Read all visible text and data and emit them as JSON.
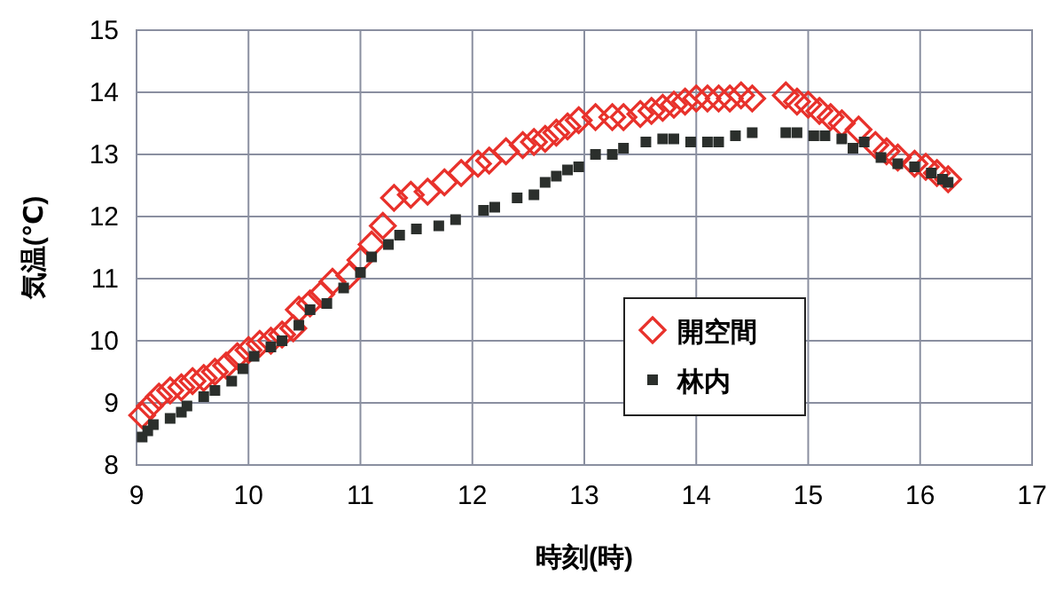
{
  "chart_data": {
    "type": "scatter",
    "xlabel": "時刻(時)",
    "ylabel": "気温(℃)",
    "xlim": [
      9,
      17
    ],
    "xticks": [
      9,
      10,
      11,
      12,
      13,
      14,
      15,
      16,
      17
    ],
    "ylim": [
      8,
      15
    ],
    "yticks": [
      8,
      9,
      10,
      11,
      12,
      13,
      14,
      15
    ],
    "grid": true,
    "legend": "bottom right",
    "series": [
      {
        "name": "開空間",
        "color": "#e8312b",
        "marker": "diamond",
        "x": [
          9.05,
          9.12,
          9.2,
          9.3,
          9.4,
          9.5,
          9.6,
          9.7,
          9.8,
          9.9,
          10.0,
          10.1,
          10.2,
          10.3,
          10.4,
          10.45,
          10.55,
          10.65,
          10.75,
          10.9,
          11.0,
          11.1,
          11.2,
          11.3,
          11.45,
          11.6,
          11.75,
          11.9,
          12.05,
          12.15,
          12.3,
          12.45,
          12.55,
          12.65,
          12.75,
          12.85,
          12.95,
          13.1,
          13.25,
          13.35,
          13.5,
          13.6,
          13.7,
          13.8,
          13.9,
          14.0,
          14.1,
          14.2,
          14.3,
          14.4,
          14.5,
          14.8,
          14.9,
          15.0,
          15.1,
          15.2,
          15.3,
          15.45,
          15.6,
          15.7,
          15.8,
          15.95,
          16.05,
          16.15,
          16.25
        ],
        "values": [
          8.8,
          8.95,
          9.1,
          9.2,
          9.25,
          9.35,
          9.4,
          9.5,
          9.6,
          9.75,
          9.85,
          9.95,
          10.0,
          10.1,
          10.2,
          10.5,
          10.6,
          10.75,
          10.95,
          11.05,
          11.3,
          11.55,
          11.85,
          12.3,
          12.35,
          12.4,
          12.55,
          12.7,
          12.85,
          12.9,
          13.05,
          13.15,
          13.2,
          13.25,
          13.35,
          13.45,
          13.55,
          13.6,
          13.6,
          13.6,
          13.65,
          13.7,
          13.75,
          13.8,
          13.85,
          13.9,
          13.9,
          13.9,
          13.9,
          13.95,
          13.9,
          13.95,
          13.85,
          13.8,
          13.7,
          13.6,
          13.5,
          13.4,
          13.15,
          13.05,
          12.95,
          12.85,
          12.8,
          12.7,
          12.6
        ]
      },
      {
        "name": "林内",
        "color": "#2b2f2c",
        "marker": "square",
        "x": [
          9.05,
          9.1,
          9.15,
          9.3,
          9.4,
          9.45,
          9.6,
          9.7,
          9.85,
          9.95,
          10.05,
          10.2,
          10.3,
          10.45,
          10.55,
          10.7,
          10.85,
          11.0,
          11.1,
          11.25,
          11.35,
          11.5,
          11.7,
          11.85,
          12.1,
          12.2,
          12.4,
          12.55,
          12.65,
          12.75,
          12.85,
          12.95,
          13.1,
          13.25,
          13.35,
          13.55,
          13.7,
          13.8,
          13.95,
          14.1,
          14.2,
          14.35,
          14.5,
          14.8,
          14.9,
          15.05,
          15.15,
          15.3,
          15.4,
          15.5,
          15.65,
          15.8,
          15.95,
          16.1,
          16.2,
          16.25
        ],
        "values": [
          8.45,
          8.55,
          8.65,
          8.75,
          8.85,
          8.95,
          9.1,
          9.2,
          9.35,
          9.55,
          9.75,
          9.9,
          10.0,
          10.25,
          10.5,
          10.6,
          10.85,
          11.1,
          11.35,
          11.55,
          11.7,
          11.8,
          11.85,
          11.95,
          12.1,
          12.15,
          12.3,
          12.35,
          12.55,
          12.65,
          12.75,
          12.8,
          13.0,
          13.0,
          13.1,
          13.2,
          13.25,
          13.25,
          13.2,
          13.2,
          13.2,
          13.3,
          13.35,
          13.35,
          13.35,
          13.3,
          13.3,
          13.25,
          13.1,
          13.2,
          12.95,
          12.85,
          12.8,
          12.7,
          12.6,
          12.55
        ]
      }
    ]
  }
}
